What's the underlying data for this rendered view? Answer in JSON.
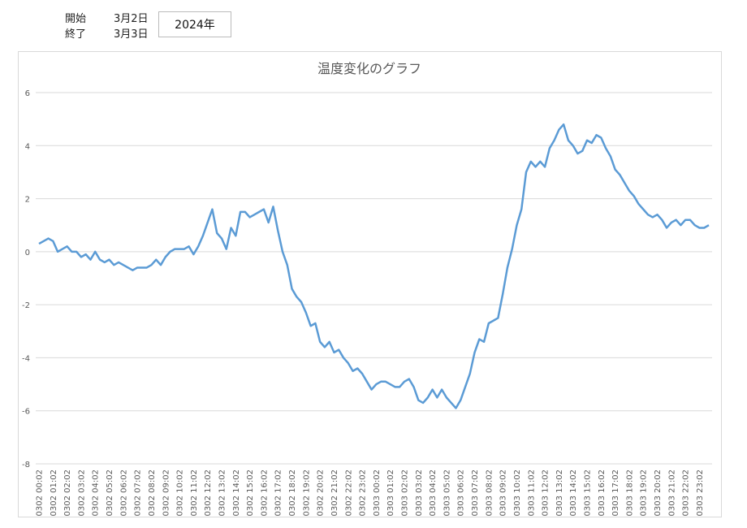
{
  "header": {
    "start_label": "開始",
    "start_date": "3月2日",
    "end_label": "終了",
    "end_date": "3月3日",
    "year": "2024年"
  },
  "chart_data": {
    "type": "line",
    "title": "温度変化のグラフ",
    "categories": [
      "0302 00:02",
      null,
      null,
      "0302 01:02",
      null,
      null,
      "0302 02:02",
      null,
      null,
      "0302 03:02",
      null,
      null,
      "0302 04:02",
      null,
      null,
      "0302 05:02",
      null,
      null,
      "0302 06:02",
      null,
      null,
      "0302 07:02",
      null,
      null,
      "0302 08:02",
      null,
      null,
      "0302 09:02",
      null,
      null,
      "0302 10:02",
      null,
      null,
      "0302 11:02",
      null,
      null,
      "0302 12:02",
      null,
      null,
      "0302 13:02",
      null,
      null,
      "0302 14:02",
      null,
      null,
      "0302 15:02",
      null,
      null,
      "0302 16:02",
      null,
      null,
      "0302 17:02",
      null,
      null,
      "0302 18:02",
      null,
      null,
      "0302 19:02",
      null,
      null,
      "0302 20:02",
      null,
      null,
      "0302 21:02",
      null,
      null,
      "0302 22:02",
      null,
      null,
      "0302 23:02",
      null,
      null,
      "0303 00:02",
      null,
      null,
      "0303 01:02",
      null,
      null,
      "0303 02:02",
      null,
      null,
      "0303 03:02",
      null,
      null,
      "0303 04:02",
      null,
      null,
      "0303 05:02",
      null,
      null,
      "0303 06:02",
      null,
      null,
      "0303 07:02",
      null,
      null,
      "0303 08:02",
      null,
      null,
      "0303 09:02",
      null,
      null,
      "0303 10:02",
      null,
      null,
      "0303 11:02",
      null,
      null,
      "0303 12:02",
      null,
      null,
      "0303 13:02",
      null,
      null,
      "0303 14:02",
      null,
      null,
      "0303 15:02",
      null,
      null,
      "0303 16:02",
      null,
      null,
      "0303 17:02",
      null,
      null,
      "0303 18:02",
      null,
      null,
      "0303 19:02",
      null,
      null,
      "0303 20:02",
      null,
      null,
      "0303 21:02",
      null,
      null,
      "0303 22:02",
      null,
      null,
      "0303 23:02",
      null,
      null
    ],
    "values": [
      0.3,
      0.4,
      0.5,
      0.4,
      0.0,
      0.1,
      0.2,
      0.0,
      0.0,
      -0.2,
      -0.1,
      -0.3,
      0.0,
      -0.3,
      -0.4,
      -0.3,
      -0.5,
      -0.4,
      -0.5,
      -0.6,
      -0.7,
      -0.6,
      -0.6,
      -0.6,
      -0.5,
      -0.3,
      -0.5,
      -0.2,
      0.0,
      0.1,
      0.1,
      0.1,
      0.2,
      -0.1,
      0.2,
      0.6,
      1.1,
      1.6,
      0.7,
      0.5,
      0.1,
      0.9,
      0.6,
      1.5,
      1.5,
      1.3,
      1.4,
      1.5,
      1.6,
      1.1,
      1.7,
      0.8,
      0.0,
      -0.5,
      -1.4,
      -1.7,
      -1.9,
      -2.3,
      -2.8,
      -2.7,
      -3.4,
      -3.6,
      -3.4,
      -3.8,
      -3.7,
      -4.0,
      -4.2,
      -4.5,
      -4.4,
      -4.6,
      -4.9,
      -5.2,
      -5.0,
      -4.9,
      -4.9,
      -5.0,
      -5.1,
      -5.1,
      -4.9,
      -4.8,
      -5.1,
      -5.6,
      -5.7,
      -5.5,
      -5.2,
      -5.5,
      -5.2,
      -5.5,
      -5.7,
      -5.9,
      -5.6,
      -5.1,
      -4.6,
      -3.8,
      -3.3,
      -3.4,
      -2.7,
      -2.6,
      -2.5,
      -1.6,
      -0.6,
      0.1,
      1.0,
      1.6,
      3.0,
      3.4,
      3.2,
      3.4,
      3.2,
      3.9,
      4.2,
      4.6,
      4.8,
      4.2,
      4.0,
      3.7,
      3.8,
      4.2,
      4.1,
      4.4,
      4.3,
      3.9,
      3.6,
      3.1,
      2.9,
      2.6,
      2.3,
      2.1,
      1.8,
      1.6,
      1.4,
      1.3,
      1.4,
      1.2,
      0.9,
      1.1,
      1.2,
      1.0,
      1.2,
      1.2,
      1.0,
      0.9,
      0.9,
      1.0
    ],
    "color": "#5b9bd5",
    "ylim": [
      -8,
      6
    ],
    "yticks": [
      -8,
      -6,
      -4,
      -2,
      0,
      2,
      4,
      6
    ],
    "grid": true
  }
}
